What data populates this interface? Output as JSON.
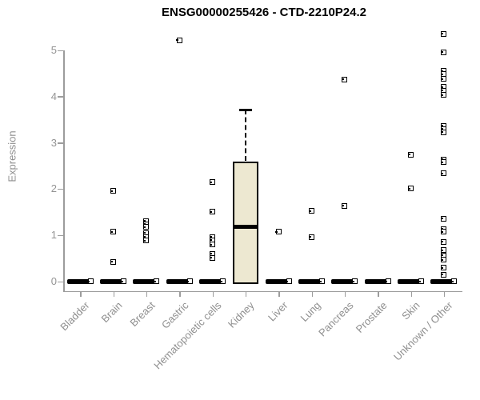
{
  "page": {
    "background": "#ffffff"
  },
  "chart_data": {
    "type": "boxplot",
    "title": "ENSG00000255426 - CTD-2210P24.2",
    "ylabel": "Expression",
    "ylim": [
      0,
      5.4
    ],
    "yticks": [
      "0",
      "1",
      "2",
      "3",
      "4",
      "5"
    ],
    "grid": false,
    "legend": "none",
    "colors": {
      "box_fill": "#ede8d1",
      "box_border": "#000000",
      "axis": "#9c9c9c",
      "tick_label": "#8f8f8f",
      "title": "#000000",
      "marker": "#000000"
    },
    "categories": [
      "Bladder",
      "Brain",
      "Breast",
      "Gastric",
      "Hematopoietic cells",
      "Kidney",
      "Liver",
      "Lung",
      "Pancreas",
      "Prostate",
      "Skin",
      "Unknown / Other"
    ],
    "groups": [
      {
        "label": "Bladder",
        "zero_bar": true,
        "points": []
      },
      {
        "label": "Brain",
        "zero_bar": true,
        "points": [
          1.95,
          1.07,
          0.42
        ]
      },
      {
        "label": "Breast",
        "zero_bar": true,
        "points": [
          1.3,
          1.23,
          1.17,
          1.04,
          0.96,
          0.88
        ]
      },
      {
        "label": "Gastric",
        "zero_bar": true,
        "points": [
          5.21
        ]
      },
      {
        "label": "Hematopoietic cells",
        "zero_bar": true,
        "points": [
          2.14,
          1.5,
          0.96,
          0.89,
          0.79,
          0.59,
          0.51
        ]
      },
      {
        "label": "Kidney",
        "zero_bar": false,
        "points": [],
        "box": {
          "min": 0,
          "q1": 0,
          "median": 1.19,
          "q3": 2.6,
          "max": 3.7
        }
      },
      {
        "label": "Liver",
        "zero_bar": true,
        "points": [
          1.07
        ]
      },
      {
        "label": "Lung",
        "zero_bar": true,
        "points": [
          1.52,
          0.96
        ]
      },
      {
        "label": "Pancreas",
        "zero_bar": true,
        "points": [
          4.36,
          1.63
        ]
      },
      {
        "label": "Prostate",
        "zero_bar": true,
        "points": []
      },
      {
        "label": "Skin",
        "zero_bar": true,
        "points": [
          2.74,
          2.0
        ]
      },
      {
        "label": "Unknown / Other",
        "zero_bar": true,
        "points": [
          5.35,
          4.95,
          4.55,
          4.48,
          4.37,
          4.2,
          4.12,
          4.03,
          3.36,
          3.29,
          3.22,
          2.63,
          2.57,
          2.33,
          1.35,
          1.13,
          1.07,
          0.85,
          0.67,
          0.56,
          0.46,
          0.29,
          0.14
        ]
      }
    ]
  }
}
